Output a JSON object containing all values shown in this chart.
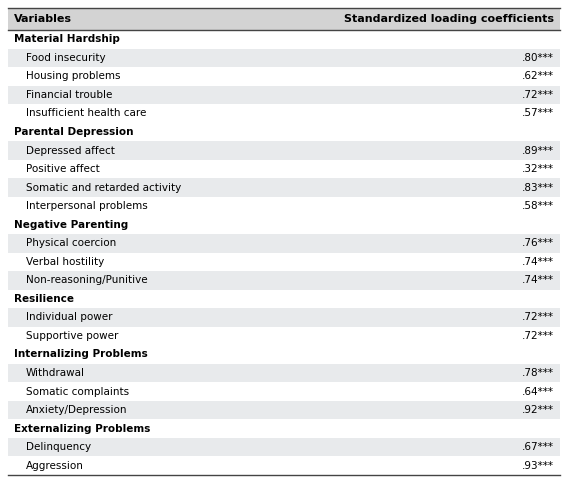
{
  "col_header": [
    "Variables",
    "Standardized loading coefficients"
  ],
  "rows": [
    {
      "label": "Material Hardship",
      "value": "",
      "bold": true,
      "indent": false,
      "shaded": false
    },
    {
      "label": "Food insecurity",
      "value": ".80***",
      "bold": false,
      "indent": true,
      "shaded": true
    },
    {
      "label": "Housing problems",
      "value": ".62***",
      "bold": false,
      "indent": true,
      "shaded": false
    },
    {
      "label": "Financial trouble",
      "value": ".72***",
      "bold": false,
      "indent": true,
      "shaded": true
    },
    {
      "label": "Insufficient health care",
      "value": ".57***",
      "bold": false,
      "indent": true,
      "shaded": false
    },
    {
      "label": "Parental Depression",
      "value": "",
      "bold": true,
      "indent": false,
      "shaded": false
    },
    {
      "label": "Depressed affect",
      "value": ".89***",
      "bold": false,
      "indent": true,
      "shaded": true
    },
    {
      "label": "Positive affect",
      "value": ".32***",
      "bold": false,
      "indent": true,
      "shaded": false
    },
    {
      "label": "Somatic and retarded activity",
      "value": ".83***",
      "bold": false,
      "indent": true,
      "shaded": true
    },
    {
      "label": "Interpersonal problems",
      "value": ".58***",
      "bold": false,
      "indent": true,
      "shaded": false
    },
    {
      "label": "Negative Parenting",
      "value": "",
      "bold": true,
      "indent": false,
      "shaded": false
    },
    {
      "label": "Physical coercion",
      "value": ".76***",
      "bold": false,
      "indent": true,
      "shaded": true
    },
    {
      "label": "Verbal hostility",
      "value": ".74***",
      "bold": false,
      "indent": true,
      "shaded": false
    },
    {
      "label": "Non-reasoning/Punitive",
      "value": ".74***",
      "bold": false,
      "indent": true,
      "shaded": true
    },
    {
      "label": "Resilience",
      "value": "",
      "bold": true,
      "indent": false,
      "shaded": false
    },
    {
      "label": "Individual power",
      "value": ".72***",
      "bold": false,
      "indent": true,
      "shaded": true
    },
    {
      "label": "Supportive power",
      "value": ".72***",
      "bold": false,
      "indent": true,
      "shaded": false
    },
    {
      "label": "Internalizing Problems",
      "value": "",
      "bold": true,
      "indent": false,
      "shaded": false
    },
    {
      "label": "Withdrawal",
      "value": ".78***",
      "bold": false,
      "indent": true,
      "shaded": true
    },
    {
      "label": "Somatic complaints",
      "value": ".64***",
      "bold": false,
      "indent": true,
      "shaded": false
    },
    {
      "label": "Anxiety/Depression",
      "value": ".92***",
      "bold": false,
      "indent": true,
      "shaded": true
    },
    {
      "label": "Externalizing Problems",
      "value": "",
      "bold": true,
      "indent": false,
      "shaded": false
    },
    {
      "label": "Delinquency",
      "value": ".67***",
      "bold": false,
      "indent": true,
      "shaded": true
    },
    {
      "label": "Aggression",
      "value": ".93***",
      "bold": false,
      "indent": true,
      "shaded": false
    }
  ],
  "header_bg": "#d3d3d3",
  "shaded_bg": "#e8eaec",
  "white_bg": "#ffffff",
  "font_size": 7.5,
  "header_font_size": 8.0,
  "fig_width": 5.68,
  "fig_height": 4.83,
  "dpi": 100
}
